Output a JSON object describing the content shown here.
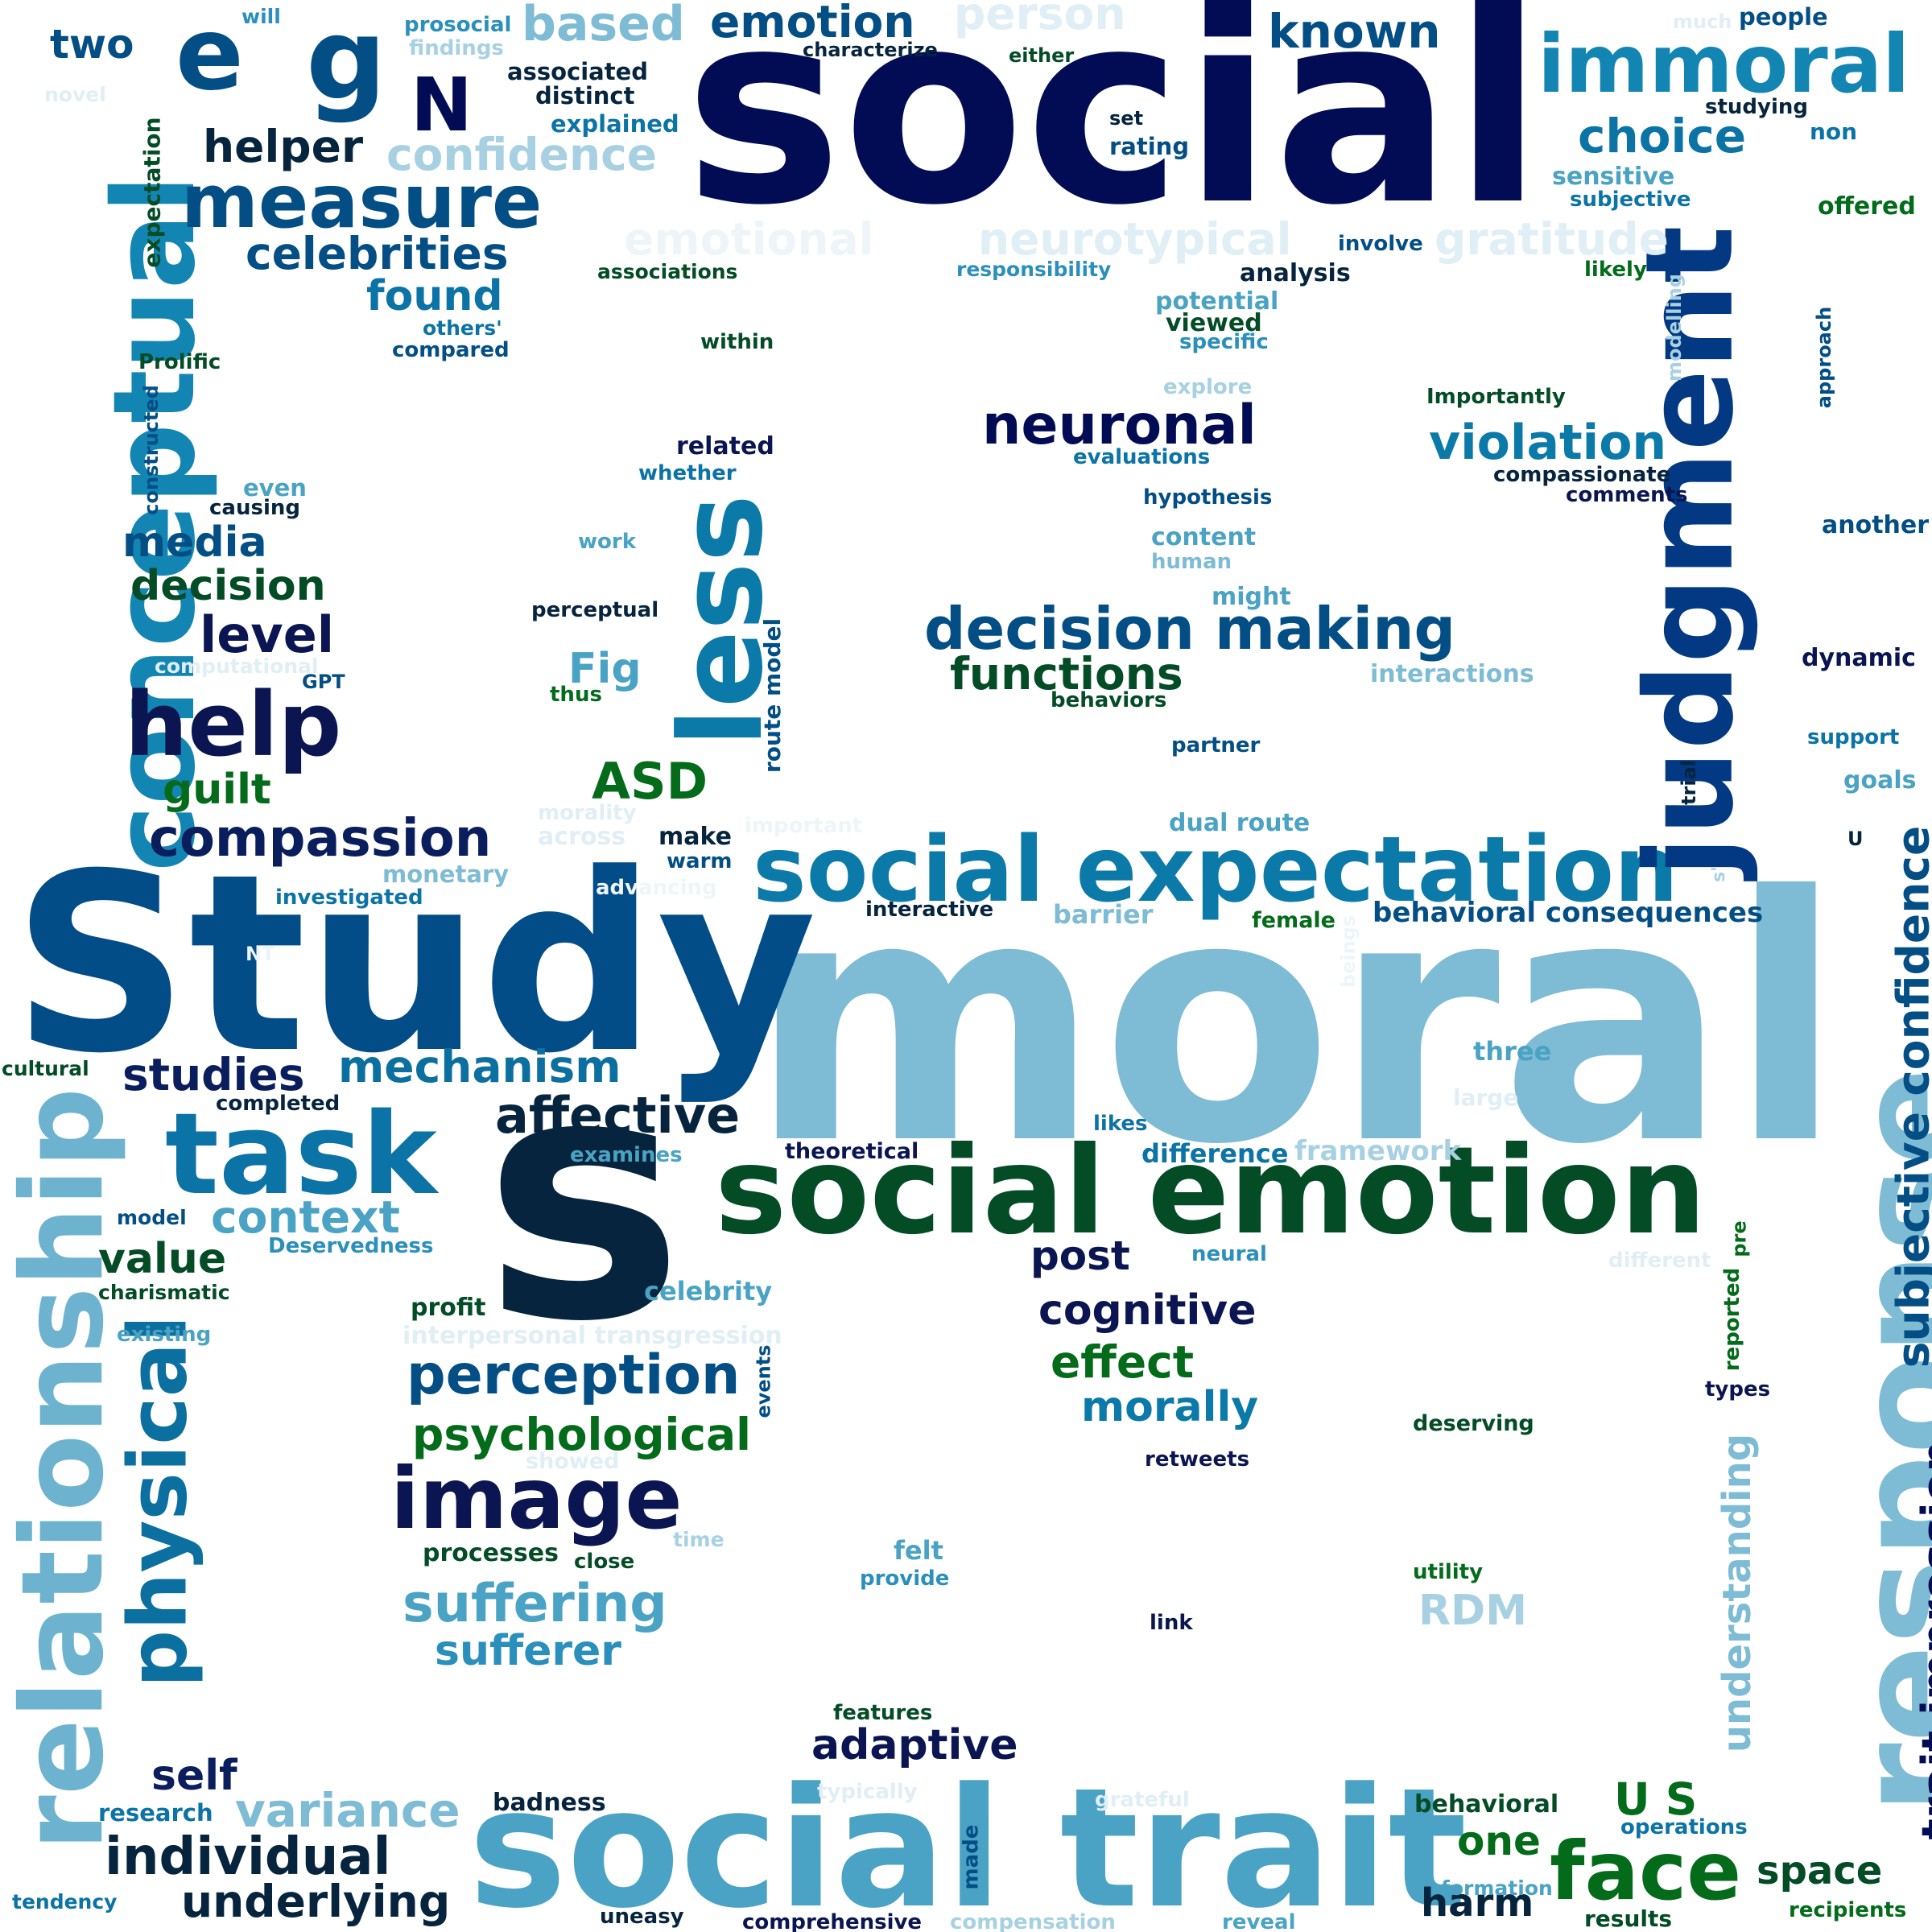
{
  "words": [
    {
      "text": "social",
      "color": "#020c55"
    },
    {
      "text": "moral",
      "color": "#7ebbd4"
    },
    {
      "text": "Study",
      "color": "#024c88"
    },
    {
      "text": "s",
      "color": "#06243d"
    },
    {
      "text": "social emotion",
      "color": "#034c25"
    },
    {
      "text": "social trait",
      "color": "#4aa3c4"
    },
    {
      "text": "social expectation",
      "color": "#0b7aa8"
    },
    {
      "text": "judgment",
      "color": "#033883"
    },
    {
      "text": "response",
      "color": "#7ebbd4"
    },
    {
      "text": "conceptual",
      "color": "#1385b3"
    },
    {
      "text": "relationship",
      "color": "#6db3cf"
    },
    {
      "text": "immoral",
      "color": "#1385b3"
    },
    {
      "text": "less",
      "color": "#0b7aa8"
    },
    {
      "text": "task",
      "color": "#0b73a5"
    },
    {
      "text": "help",
      "color": "#0a1552"
    },
    {
      "text": "measure",
      "color": "#034e85"
    },
    {
      "text": "image",
      "color": "#0a1552"
    },
    {
      "text": "e",
      "color": "#034e85"
    },
    {
      "text": "g",
      "color": "#034e85"
    },
    {
      "text": "N",
      "color": "#020c55"
    },
    {
      "text": "physical",
      "color": "#0b6fa0"
    },
    {
      "text": "decision making",
      "color": "#034e85"
    },
    {
      "text": "face",
      "color": "#036b1a"
    },
    {
      "text": "compassion",
      "color": "#0a1d5c"
    },
    {
      "text": "neuronal",
      "color": "#020c55"
    },
    {
      "text": "affective",
      "color": "#06243d"
    },
    {
      "text": "perception",
      "color": "#034e85"
    },
    {
      "text": "mechanism",
      "color": "#0b6fa0"
    },
    {
      "text": "individual",
      "color": "#06243d"
    },
    {
      "text": "suffering",
      "color": "#4aa3c4"
    },
    {
      "text": "variance",
      "color": "#7ebbd4"
    },
    {
      "text": "underlying",
      "color": "#06243d"
    },
    {
      "text": "functions",
      "color": "#034c25"
    },
    {
      "text": "psychological",
      "color": "#036b1a"
    },
    {
      "text": "subjective confidence",
      "color": "#034e85"
    },
    {
      "text": "trait impression",
      "color": "#020c55"
    },
    {
      "text": "violation",
      "color": "#0b7aa8"
    },
    {
      "text": "known",
      "color": "#034e85"
    },
    {
      "text": "based",
      "color": "#7ebbd4"
    },
    {
      "text": "emotion",
      "color": "#034e85"
    },
    {
      "text": "choice",
      "color": "#0b73a5"
    },
    {
      "text": "celebrities",
      "color": "#034e85"
    },
    {
      "text": "found",
      "color": "#0b73a5"
    },
    {
      "text": "confidence",
      "color": "#a7d1e2"
    },
    {
      "text": "helper",
      "color": "#06243d"
    },
    {
      "text": "two",
      "color": "#034e85"
    },
    {
      "text": "media",
      "color": "#034e85"
    },
    {
      "text": "decision",
      "color": "#034c25"
    },
    {
      "text": "level",
      "color": "#0a1552"
    },
    {
      "text": "guilt",
      "color": "#036b1a"
    },
    {
      "text": "ASD",
      "color": "#036b1a"
    },
    {
      "text": "Fig",
      "color": "#4aa3c4"
    },
    {
      "text": "studies",
      "color": "#0a1d5c"
    },
    {
      "text": "context",
      "color": "#4aa3c4"
    },
    {
      "text": "value",
      "color": "#034c25"
    },
    {
      "text": "self",
      "color": "#0a1d5c"
    },
    {
      "text": "sufferer",
      "color": "#2b8fbb"
    },
    {
      "text": "adaptive",
      "color": "#0a1552"
    },
    {
      "text": "cognitive",
      "color": "#0a1552"
    },
    {
      "text": "effect",
      "color": "#036b1a"
    },
    {
      "text": "morally",
      "color": "#0b7aa8"
    },
    {
      "text": "post",
      "color": "#0a1552"
    },
    {
      "text": "RDM",
      "color": "#a7d1e2"
    },
    {
      "text": "U S",
      "color": "#036b1a"
    },
    {
      "text": "one",
      "color": "#036b1a"
    },
    {
      "text": "harm",
      "color": "#06243d"
    },
    {
      "text": "space",
      "color": "#034c25"
    },
    {
      "text": "understanding",
      "color": "#7ebbd4"
    },
    {
      "text": "neurotypical",
      "color": "#e0eef5"
    },
    {
      "text": "gratitude",
      "color": "#e0eef5"
    },
    {
      "text": "emotional",
      "color": "#eef5f9"
    },
    {
      "text": "person",
      "color": "#e0eef5"
    },
    {
      "text": "interpersonal transgression",
      "color": "#e0eef5"
    },
    {
      "text": "expectation",
      "color": "#034c25"
    },
    {
      "text": "constructed",
      "color": "#034e85"
    },
    {
      "text": "route model",
      "color": "#034e85"
    },
    {
      "text": "dual route",
      "color": "#4aa3c4"
    },
    {
      "text": "behavioral consequences",
      "color": "#034e85"
    },
    {
      "text": "barrier",
      "color": "#7ebbd4"
    },
    {
      "text": "female",
      "color": "#036b1a"
    },
    {
      "text": "interactive",
      "color": "#06243d"
    },
    {
      "text": "three",
      "color": "#4aa3c4"
    },
    {
      "text": "large",
      "color": "#e0eef5"
    },
    {
      "text": "likes",
      "color": "#0b73a5"
    },
    {
      "text": "difference",
      "color": "#0b73a5"
    },
    {
      "text": "framework",
      "color": "#a7d1e2"
    },
    {
      "text": "theoretical",
      "color": "#0a1552"
    },
    {
      "text": "examines",
      "color": "#4aa3c4"
    },
    {
      "text": "neural",
      "color": "#2b8fbb"
    },
    {
      "text": "different",
      "color": "#e0eef5"
    },
    {
      "text": "reported",
      "color": "#036b1a"
    },
    {
      "text": "pre",
      "color": "#036b1a"
    },
    {
      "text": "types",
      "color": "#0a1552"
    },
    {
      "text": "deserving",
      "color": "#034c25"
    },
    {
      "text": "retweets",
      "color": "#0a1552"
    },
    {
      "text": "celebrity",
      "color": "#4aa3c4"
    },
    {
      "text": "Deservedness",
      "color": "#2b8fbb"
    },
    {
      "text": "charismatic",
      "color": "#034c25"
    },
    {
      "text": "model",
      "color": "#034e85"
    },
    {
      "text": "profit",
      "color": "#034c25"
    },
    {
      "text": "existing",
      "color": "#4aa3c4"
    },
    {
      "text": "events",
      "color": "#034e85"
    },
    {
      "text": "showed",
      "color": "#e0eef5"
    },
    {
      "text": "processes",
      "color": "#034c25"
    },
    {
      "text": "close",
      "color": "#034c25"
    },
    {
      "text": "time",
      "color": "#a7d1e2"
    },
    {
      "text": "felt",
      "color": "#4aa3c4"
    },
    {
      "text": "provide",
      "color": "#2b8fbb"
    },
    {
      "text": "utility",
      "color": "#036b1a"
    },
    {
      "text": "link",
      "color": "#0a1552"
    },
    {
      "text": "features",
      "color": "#034c25"
    },
    {
      "text": "typically",
      "color": "#e0eef5"
    },
    {
      "text": "grateful",
      "color": "#e0eef5"
    },
    {
      "text": "behavioral",
      "color": "#034c25"
    },
    {
      "text": "operations",
      "color": "#0b73a5"
    },
    {
      "text": "formation",
      "color": "#4aa3c4"
    },
    {
      "text": "results",
      "color": "#034c25"
    },
    {
      "text": "recipients",
      "color": "#036b1a"
    },
    {
      "text": "badness",
      "color": "#06243d"
    },
    {
      "text": "made",
      "color": "#034e85"
    },
    {
      "text": "research",
      "color": "#0b73a5"
    },
    {
      "text": "tendency",
      "color": "#0b73a5"
    },
    {
      "text": "uneasy",
      "color": "#06243d"
    },
    {
      "text": "comprehensive",
      "color": "#0a1552"
    },
    {
      "text": "compensation",
      "color": "#a7d1e2"
    },
    {
      "text": "reveal",
      "color": "#4aa3c4"
    },
    {
      "text": "will",
      "color": "#2b8fbb"
    },
    {
      "text": "prosocial",
      "color": "#2b8fbb"
    },
    {
      "text": "findings",
      "color": "#a7d1e2"
    },
    {
      "text": "novel",
      "color": "#e0eef5"
    },
    {
      "text": "associated",
      "color": "#06243d"
    },
    {
      "text": "distinct",
      "color": "#06243d"
    },
    {
      "text": "explained",
      "color": "#0b73a5"
    },
    {
      "text": "characterize",
      "color": "#06243d"
    },
    {
      "text": "either",
      "color": "#034c25"
    },
    {
      "text": "set",
      "color": "#06243d"
    },
    {
      "text": "rating",
      "color": "#034e85"
    },
    {
      "text": "much",
      "color": "#e0eef5"
    },
    {
      "text": "people",
      "color": "#034e85"
    },
    {
      "text": "studying",
      "color": "#06243d"
    },
    {
      "text": "non",
      "color": "#0b73a5"
    },
    {
      "text": "sensitive",
      "color": "#4aa3c4"
    },
    {
      "text": "subjective",
      "color": "#0b73a5"
    },
    {
      "text": "offered",
      "color": "#036b1a"
    },
    {
      "text": "involve",
      "color": "#034e85"
    },
    {
      "text": "analysis",
      "color": "#06243d"
    },
    {
      "text": "likely",
      "color": "#036b1a"
    },
    {
      "text": "responsibility",
      "color": "#2b8fbb"
    },
    {
      "text": "associations",
      "color": "#034c25"
    },
    {
      "text": "potential",
      "color": "#4aa3c4"
    },
    {
      "text": "viewed",
      "color": "#034c25"
    },
    {
      "text": "specific",
      "color": "#2b8fbb"
    },
    {
      "text": "others'",
      "color": "#0b73a5"
    },
    {
      "text": "compared",
      "color": "#034e85"
    },
    {
      "text": "within",
      "color": "#034c25"
    },
    {
      "text": "Prolific",
      "color": "#034c25"
    },
    {
      "text": "modelling",
      "color": "#a7d1e2"
    },
    {
      "text": "approach",
      "color": "#034e85"
    },
    {
      "text": "explore",
      "color": "#a7d1e2"
    },
    {
      "text": "Importantly",
      "color": "#034c25"
    },
    {
      "text": "related",
      "color": "#0a1552"
    },
    {
      "text": "whether",
      "color": "#0b73a5"
    },
    {
      "text": "evaluations",
      "color": "#0b73a5"
    },
    {
      "text": "compassionate",
      "color": "#06243d"
    },
    {
      "text": "comments",
      "color": "#0a1552"
    },
    {
      "text": "even",
      "color": "#4aa3c4"
    },
    {
      "text": "causing",
      "color": "#06243d"
    },
    {
      "text": "hypothesis",
      "color": "#034e85"
    },
    {
      "text": "another",
      "color": "#034e85"
    },
    {
      "text": "work",
      "color": "#4aa3c4"
    },
    {
      "text": "content",
      "color": "#4aa3c4"
    },
    {
      "text": "human",
      "color": "#7ebbd4"
    },
    {
      "text": "perceptual",
      "color": "#06243d"
    },
    {
      "text": "might",
      "color": "#4aa3c4"
    },
    {
      "text": "computational",
      "color": "#e0eef5"
    },
    {
      "text": "GPT",
      "color": "#034e85"
    },
    {
      "text": "thus",
      "color": "#036b1a"
    },
    {
      "text": "interactions",
      "color": "#7ebbd4"
    },
    {
      "text": "dynamic",
      "color": "#0a1552"
    },
    {
      "text": "behaviors",
      "color": "#034c25"
    },
    {
      "text": "partner",
      "color": "#034e85"
    },
    {
      "text": "support",
      "color": "#0b73a5"
    },
    {
      "text": "goals",
      "color": "#4aa3c4"
    },
    {
      "text": "trial",
      "color": "#06243d"
    },
    {
      "text": "U",
      "color": "#06243d"
    },
    {
      "text": "s'",
      "color": "#a7d1e2"
    },
    {
      "text": "morality",
      "color": "#e0eef5"
    },
    {
      "text": "across",
      "color": "#e0eef5"
    },
    {
      "text": "make",
      "color": "#06243d"
    },
    {
      "text": "warm",
      "color": "#034e85"
    },
    {
      "text": "important",
      "color": "#eef5f9"
    },
    {
      "text": "advancing",
      "color": "#eef5f9"
    },
    {
      "text": "monetary",
      "color": "#7ebbd4"
    },
    {
      "text": "investigated",
      "color": "#0b73a5"
    },
    {
      "text": "NT",
      "color": "#eef5f9"
    },
    {
      "text": "beings",
      "color": "#eef5f9"
    },
    {
      "text": "cultural",
      "color": "#034c25"
    },
    {
      "text": "completed",
      "color": "#06243d"
    }
  ]
}
